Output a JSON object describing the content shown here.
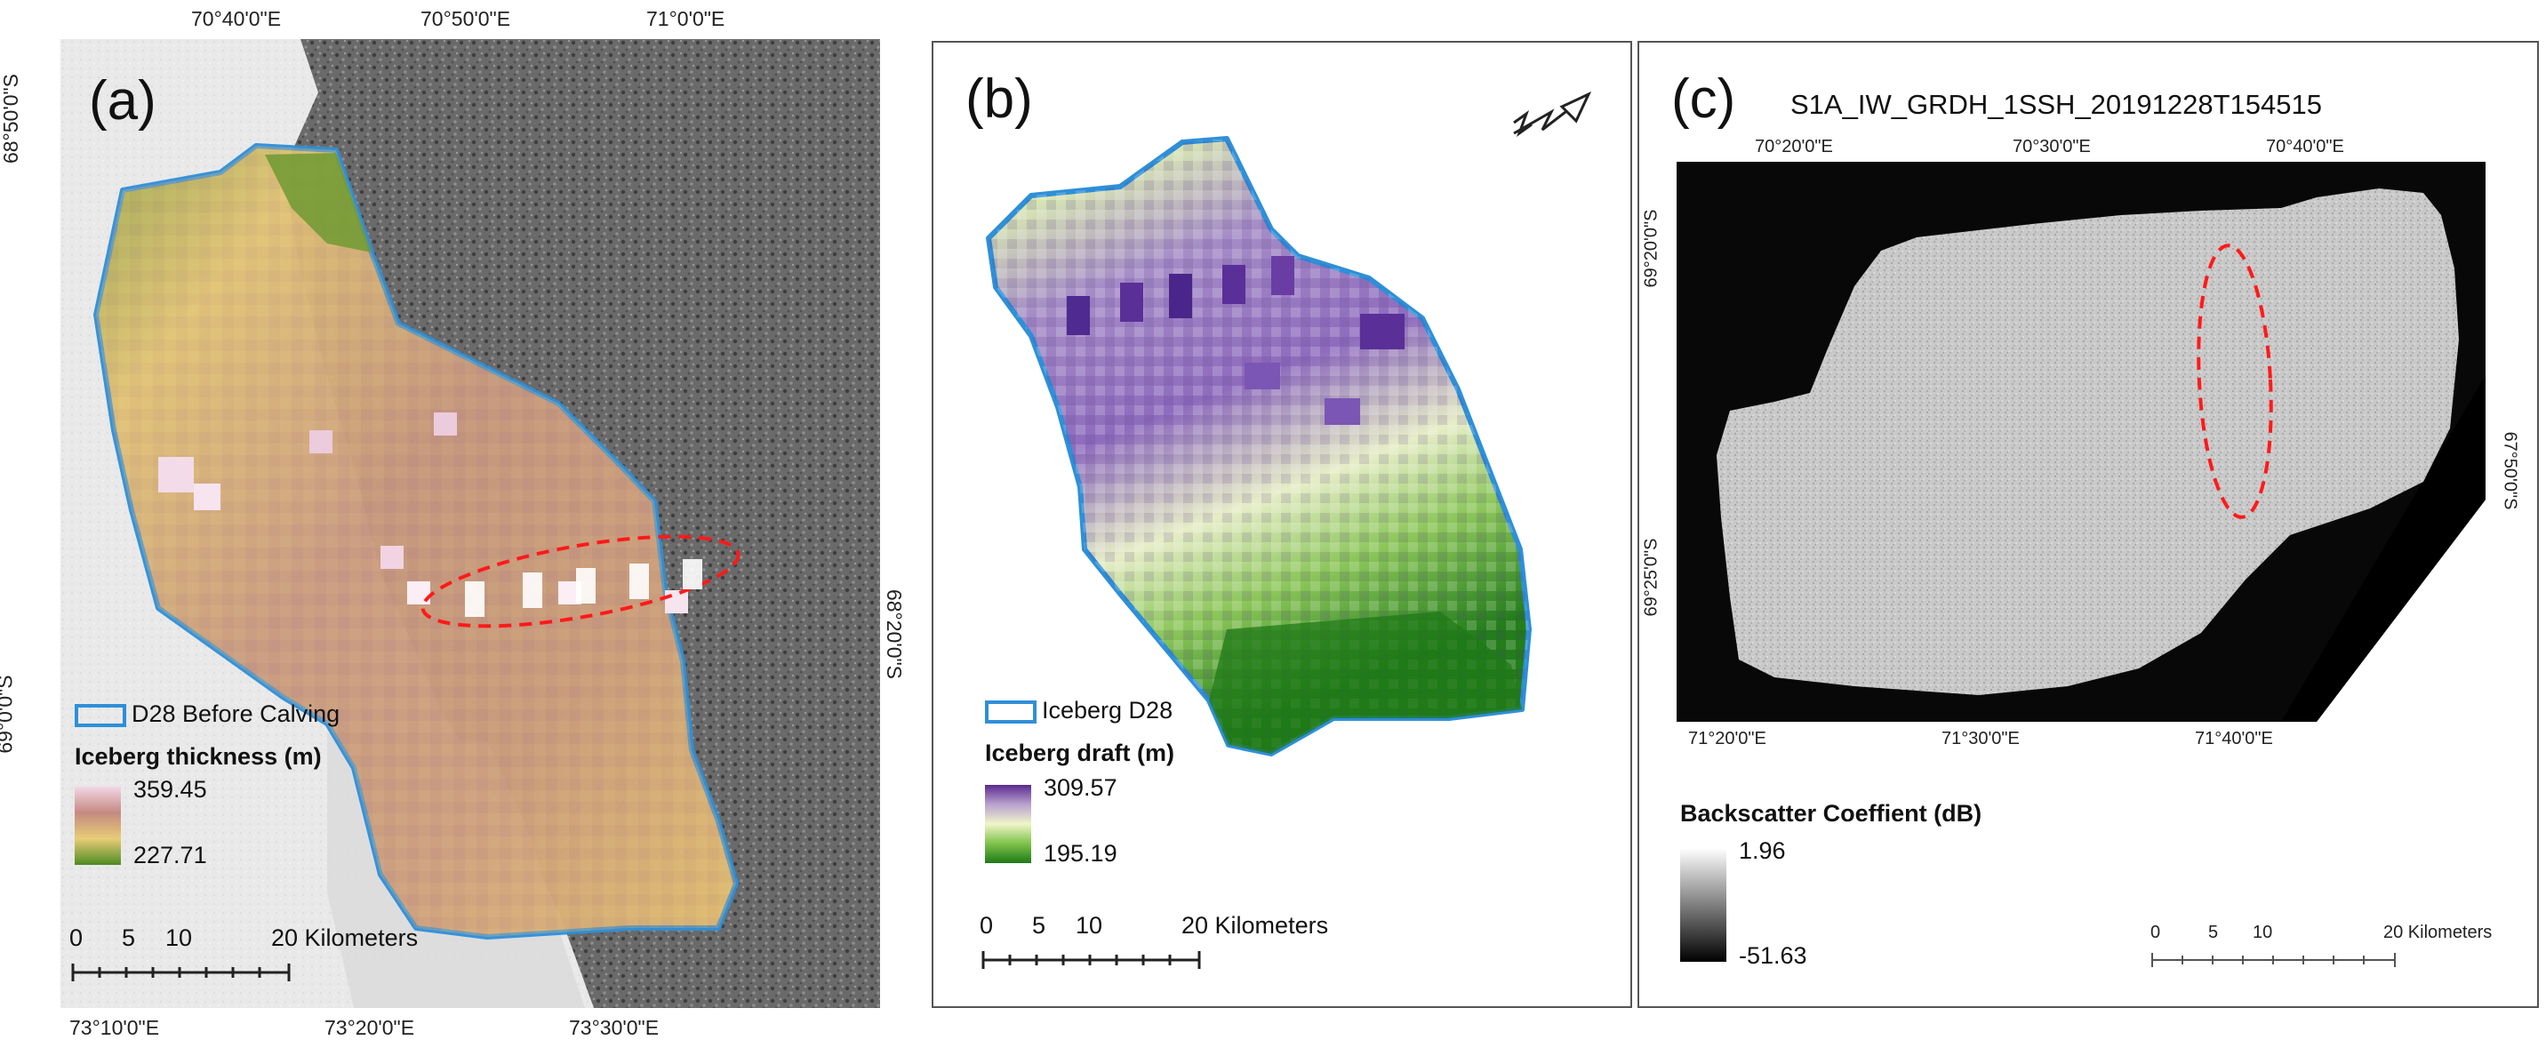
{
  "panel_a": {
    "letter": "(a)",
    "top_ticks": [
      "70°40'0\"E",
      "70°50'0\"E",
      "71°0'0\"E"
    ],
    "bottom_ticks": [
      "73°10'0\"E",
      "73°20'0\"E",
      "73°30'0\"E"
    ],
    "left_ticks": [
      "68°50'0\"S",
      "69°0'0\"S"
    ],
    "right_ticks": [
      "68°20'0\"S"
    ],
    "legend_outline_label": "D28 Before Calving",
    "legend_title": "Iceberg thickness (m)",
    "ramp_max": "359.45",
    "ramp_min": "227.71",
    "ramp_colors": [
      "#f4d6e6",
      "#c48a82",
      "#e8cc76",
      "#4d8b22"
    ],
    "scale_labels": [
      "0",
      "5",
      "10",
      "20 Kilometers"
    ],
    "outline_color": "#2f8fd8",
    "ellipse_color": "#ff1a1a"
  },
  "panel_b": {
    "letter": "(b)",
    "legend_outline_label": "Iceberg D28",
    "legend_title": "Iceberg draft (m)",
    "ramp_max": "309.57",
    "ramp_min": "195.19",
    "ramp_colors": [
      "#5a2a8f",
      "#b9a2cf",
      "#f0f5c8",
      "#7ec24a",
      "#1f7a17"
    ],
    "scale_labels": [
      "0",
      "5",
      "10",
      "20 Kilometers"
    ]
  },
  "panel_c": {
    "letter": "(c)",
    "title": "S1A_IW_GRDH_1SSH_20191228T154515",
    "top_ticks": [
      "70°20'0\"E",
      "70°30'0\"E",
      "70°40'0\"E"
    ],
    "bottom_ticks": [
      "71°20'0\"E",
      "71°30'0\"E",
      "71°40'0\"E"
    ],
    "left_ticks": [
      "69°20'0\"S",
      "69°25'0\"S"
    ],
    "right_ticks": [
      "67°50'0\"S"
    ],
    "legend_title": "Backscatter Coeffient (dB)",
    "ramp_max": "1.96",
    "ramp_min": "-51.63",
    "ramp_colors": [
      "#ffffff",
      "#000000"
    ],
    "scale_labels": [
      "0",
      "5",
      "10",
      "20 Kilometers"
    ]
  }
}
